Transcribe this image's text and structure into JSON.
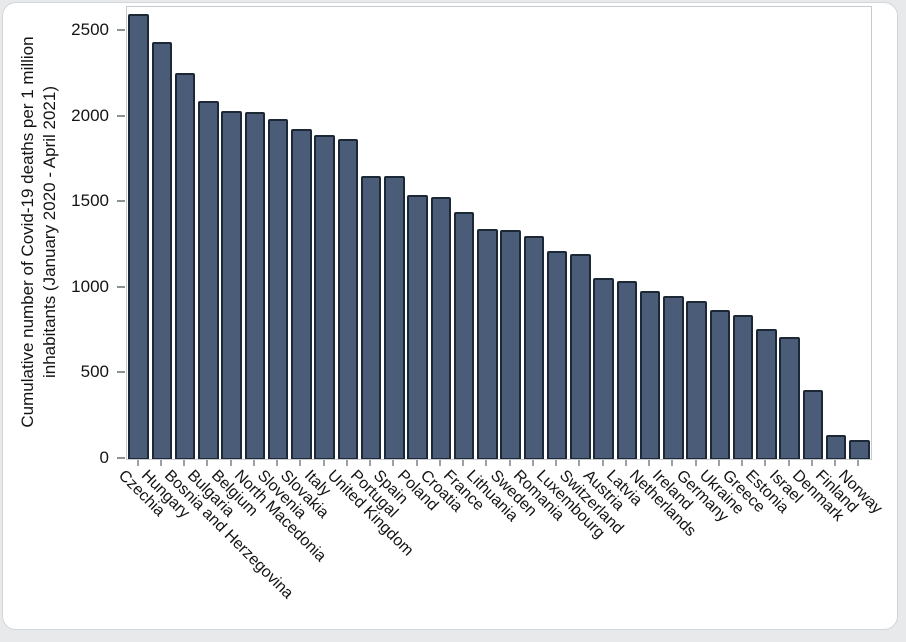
{
  "chart_data": {
    "type": "bar",
    "title": "",
    "xlabel": "",
    "ylabel": "Cumulative number of Covid-19 deaths per 1 million inhabitants (January 2020 - April 2021)",
    "ylabel_lines": [
      "Cumulative number of Covid-19 deaths per 1 million",
      "inhabitants (January 2020 - April 2021)"
    ],
    "ylim": [
      0,
      2640
    ],
    "yticks": [
      0,
      500,
      1000,
      1500,
      2000,
      2500
    ],
    "grid": false,
    "legend": false,
    "bar_color": "#4a5c77",
    "bar_border_color": "#1c2836",
    "categories": [
      "Czechia",
      "Hungary",
      "Bosnia and Herzegovina",
      "Bulgaria",
      "Belgium",
      "North Macedonia",
      "Slovenia",
      "Slovakia",
      "Italy",
      "United Kingdom",
      "Portugal",
      "Spain",
      "Poland",
      "Croatia",
      "France",
      "Lithuania",
      "Sweden",
      "Romania",
      "Luxembourg",
      "Switzerland",
      "Austria",
      "Latvia",
      "Netherlands",
      "Ireland",
      "Germany",
      "Ukraine",
      "Greece",
      "Estonia",
      "Israel",
      "Denmark",
      "Finland",
      "Norway"
    ],
    "values": [
      2600,
      2435,
      2255,
      2090,
      2035,
      2025,
      1985,
      1930,
      1890,
      1870,
      1655,
      1655,
      1540,
      1530,
      1440,
      1345,
      1340,
      1300,
      1215,
      1200,
      1060,
      1040,
      980,
      955,
      925,
      870,
      840,
      760,
      710,
      405,
      140,
      110
    ]
  },
  "colors": {
    "page_bg": "#e8e9ea",
    "card_bg": "#ffffff",
    "frame": "#c6cacd",
    "tick": "#8d9297",
    "text": "#141414"
  }
}
